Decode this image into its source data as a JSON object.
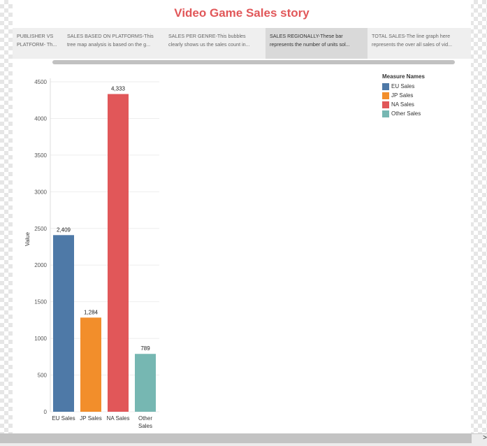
{
  "story": {
    "title": "Video Game Sales story",
    "tabs": [
      {
        "line1": "PUBLISHER VS",
        "line2": "PLATFORM- Th...",
        "active": false
      },
      {
        "line1": "SALES BASED ON PLATFORMS-This",
        "line2": "tree map analysis is based on the g...",
        "active": false
      },
      {
        "line1": "SALES PER GENRE-This bubbles",
        "line2": "clearly shows us the sales count in...",
        "active": false
      },
      {
        "line1": "SALES REGIONALLY-These bar",
        "line2": "represents the number of units sol...",
        "active": true
      },
      {
        "line1": "TOTAL SALES-The line graph here",
        "line2": "represents the over all sales of vid...",
        "active": false
      }
    ]
  },
  "chart_data": {
    "type": "bar",
    "categories": [
      "EU Sales",
      "JP Sales",
      "NA Sales",
      "Other Sales"
    ],
    "category_lines": [
      [
        "EU Sales"
      ],
      [
        "JP Sales"
      ],
      [
        "NA Sales"
      ],
      [
        "Other",
        "Sales"
      ]
    ],
    "values": [
      2409,
      1284,
      4333,
      789
    ],
    "data_labels": [
      "2,409",
      "1,284",
      "4,333",
      "789"
    ],
    "colors": [
      "#4e79a7",
      "#f28e2b",
      "#e15759",
      "#76b7b2"
    ],
    "ylabel": "Value",
    "ylim": [
      0,
      4500
    ],
    "yticks": [
      0,
      500,
      1000,
      1500,
      2000,
      2500,
      3000,
      3500,
      4000,
      4500
    ],
    "grid": true,
    "legend": {
      "title": "Measure Names",
      "placement": "top-right",
      "items": [
        "EU Sales",
        "JP Sales",
        "NA Sales",
        "Other Sales"
      ]
    }
  }
}
